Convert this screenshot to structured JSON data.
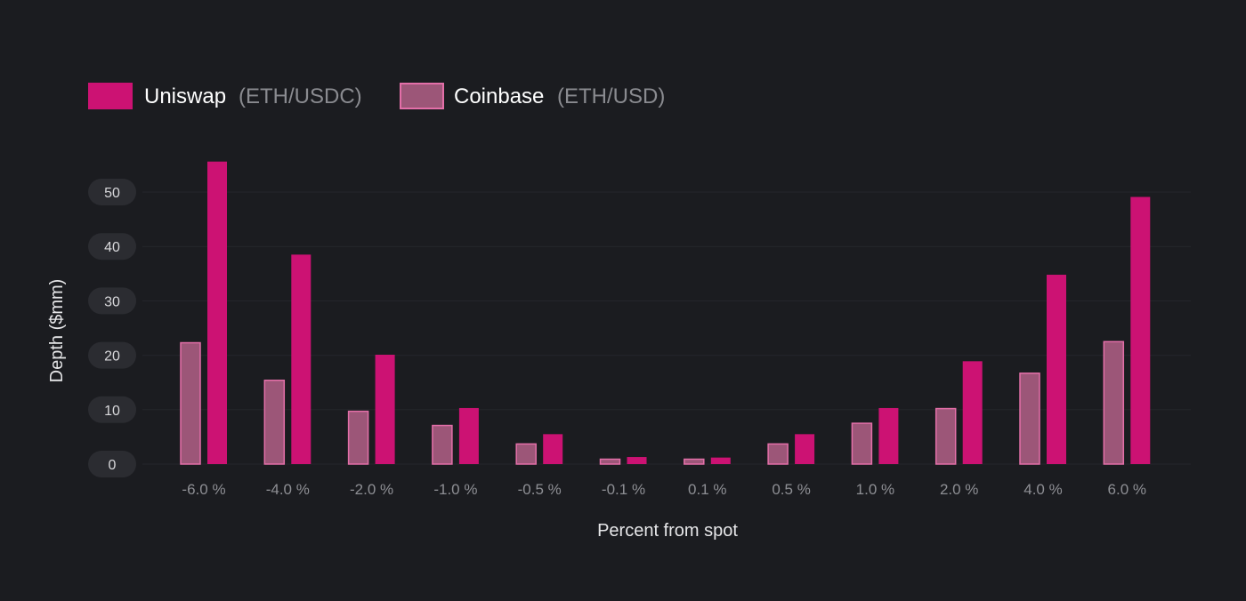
{
  "chart_data": {
    "type": "bar",
    "title": "",
    "xlabel": "Percent from spot",
    "ylabel": "Depth ($mm)",
    "ylim": [
      0,
      55
    ],
    "yticks": [
      "0",
      "10",
      "20",
      "30",
      "40",
      "50"
    ],
    "categories": [
      "-6.0 %",
      "-4.0 %",
      "-2.0 %",
      "-1.0 %",
      "-0.5 %",
      "-0.1 %",
      "0.1 %",
      "0.5 %",
      "1.0 %",
      "2.0 %",
      "4.0 %",
      "6.0 %"
    ],
    "series": [
      {
        "name": "Coinbase",
        "pair": "(ETH/USD)",
        "color": "#9c5678",
        "border": "#e36fa8",
        "values": [
          22.3,
          15.4,
          9.7,
          7.1,
          3.7,
          0.9,
          0.9,
          3.7,
          7.5,
          10.2,
          16.7,
          22.5
        ]
      },
      {
        "name": "Uniswap",
        "pair": "(ETH/USDC)",
        "color": "#cc1273",
        "border": "#e0157f",
        "values": [
          55.6,
          38.5,
          20.1,
          10.3,
          5.5,
          1.3,
          1.2,
          5.5,
          10.3,
          18.9,
          34.8,
          49.1
        ]
      }
    ],
    "legend": [
      {
        "name": "Uniswap",
        "pair": "(ETH/USDC)",
        "color": "#cc1273",
        "border": "#e0157f"
      },
      {
        "name": "Coinbase",
        "pair": "(ETH/USD)",
        "color": "#9c5678",
        "border": "#e36fa8"
      }
    ],
    "legend_position": "top-left",
    "grid": true
  }
}
